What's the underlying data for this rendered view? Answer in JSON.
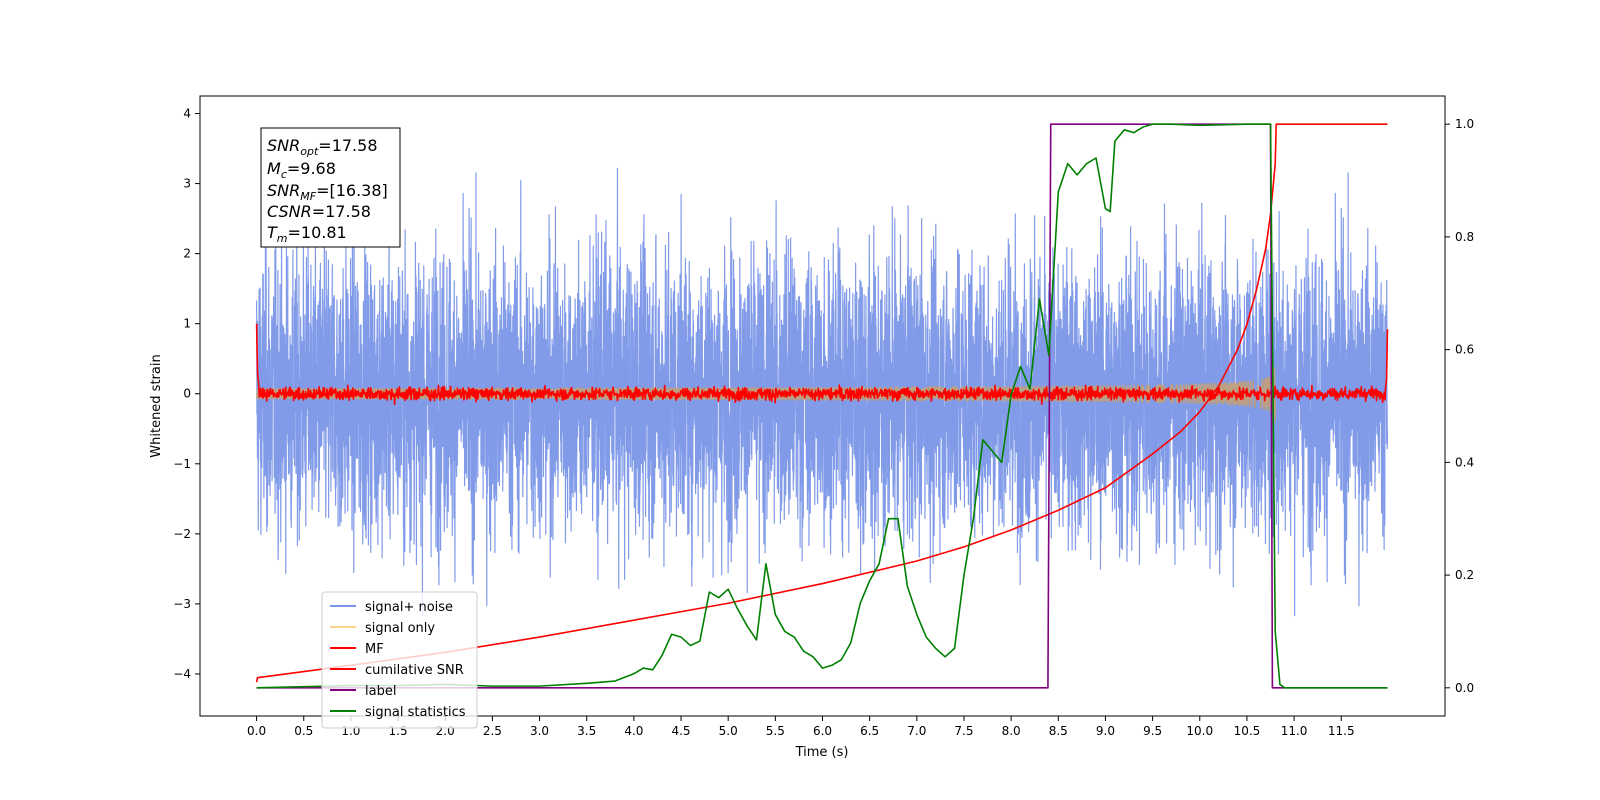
{
  "chart_data": {
    "type": "line",
    "xlabel": "Time (s)",
    "ylabel": "Whitened strain",
    "xlim": [
      -0.6,
      12.6
    ],
    "ylim": [
      -4.6,
      4.25
    ],
    "y2lim": [
      -0.05,
      1.05
    ],
    "x_ticks": [
      "0.0",
      "0.5",
      "1.0",
      "1.5",
      "2.0",
      "2.5",
      "3.0",
      "3.5",
      "4.0",
      "4.5",
      "5.0",
      "5.5",
      "6.0",
      "6.5",
      "7.0",
      "7.5",
      "8.0",
      "8.5",
      "9.0",
      "9.5",
      "10.0",
      "10.5",
      "11.0",
      "11.5"
    ],
    "y_ticks": [
      "−4",
      "−3",
      "−2",
      "−1",
      "0",
      "1",
      "2",
      "3",
      "4"
    ],
    "y2_ticks": [
      "0.0",
      "0.2",
      "0.4",
      "0.6",
      "0.8",
      "1.0"
    ],
    "annotation": {
      "snr_opt": {
        "base": "SNR",
        "sub": "opt",
        "value": "=17.58"
      },
      "mc": {
        "base": "M",
        "sub": "c",
        "value": "=9.68"
      },
      "snr_mf": {
        "base": "SNR",
        "sub": "MF",
        "value": "=[16.38]"
      },
      "csnr": {
        "base": "CSNR",
        "sub": "",
        "value": "=17.58"
      },
      "tm": {
        "base": "T",
        "sub": "m",
        "value": "=10.81"
      }
    },
    "legend_position": "lower-left",
    "series": [
      {
        "name": "signal+ noise",
        "color": "#7a96e8",
        "axis": "left",
        "kind": "noise",
        "x_range": [
          0.0,
          11.99
        ],
        "std": 1.0,
        "y_min": -4.1,
        "y_max": 3.9
      },
      {
        "name": "signal only",
        "color": "#fbd38a",
        "axis": "left",
        "kind": "chirp",
        "x_range": [
          0.0,
          10.81
        ],
        "amp_end": 1.4
      },
      {
        "name": "MF",
        "color": "#ff0000",
        "axis": "left",
        "kind": "mf",
        "x_range": [
          0.0,
          11.99
        ]
      },
      {
        "name": "cumilative SNR",
        "color": "#ff0000",
        "axis": "right",
        "kind": "line",
        "x": [
          0.0,
          0.01,
          1.0,
          2.0,
          3.0,
          4.0,
          5.0,
          6.0,
          7.0,
          7.5,
          8.0,
          8.5,
          9.0,
          9.5,
          9.8,
          10.0,
          10.2,
          10.4,
          10.5,
          10.6,
          10.7,
          10.75,
          10.8,
          10.81,
          10.82,
          11.99
        ],
        "y": [
          0.01,
          0.018,
          0.04,
          0.063,
          0.09,
          0.12,
          0.15,
          0.185,
          0.225,
          0.25,
          0.28,
          0.315,
          0.355,
          0.415,
          0.455,
          0.49,
          0.535,
          0.6,
          0.645,
          0.705,
          0.78,
          0.84,
          0.93,
          1.0,
          1.0,
          1.0
        ]
      },
      {
        "name": "label",
        "color": "#800080",
        "axis": "right",
        "kind": "line",
        "x": [
          0.0,
          8.39,
          8.42,
          10.75,
          10.77,
          11.99
        ],
        "y": [
          0.0,
          0.0,
          1.0,
          1.0,
          0.0,
          0.0
        ]
      },
      {
        "name": "signal statistics",
        "color": "#008000",
        "axis": "right",
        "kind": "line",
        "x": [
          0.0,
          0.5,
          1.0,
          1.5,
          2.0,
          2.5,
          3.0,
          3.5,
          3.8,
          4.0,
          4.1,
          4.2,
          4.3,
          4.4,
          4.5,
          4.6,
          4.7,
          4.8,
          4.9,
          5.0,
          5.1,
          5.2,
          5.3,
          5.4,
          5.5,
          5.6,
          5.7,
          5.8,
          5.9,
          6.0,
          6.1,
          6.2,
          6.3,
          6.4,
          6.5,
          6.6,
          6.7,
          6.8,
          6.9,
          7.0,
          7.1,
          7.2,
          7.3,
          7.4,
          7.5,
          7.6,
          7.7,
          7.8,
          7.9,
          8.0,
          8.1,
          8.2,
          8.3,
          8.4,
          8.5,
          8.6,
          8.7,
          8.8,
          8.9,
          9.0,
          9.05,
          9.1,
          9.2,
          9.3,
          9.4,
          9.5,
          9.7,
          10.0,
          10.5,
          10.7,
          10.75,
          10.8,
          10.85,
          10.9,
          11.0,
          11.99
        ],
        "y": [
          0.0,
          0.002,
          0.004,
          0.004,
          0.006,
          0.003,
          0.003,
          0.008,
          0.012,
          0.025,
          0.035,
          0.032,
          0.058,
          0.095,
          0.09,
          0.075,
          0.083,
          0.17,
          0.16,
          0.175,
          0.14,
          0.11,
          0.085,
          0.22,
          0.13,
          0.1,
          0.09,
          0.065,
          0.055,
          0.035,
          0.04,
          0.05,
          0.08,
          0.15,
          0.19,
          0.22,
          0.3,
          0.3,
          0.18,
          0.13,
          0.09,
          0.07,
          0.055,
          0.07,
          0.2,
          0.3,
          0.44,
          0.42,
          0.4,
          0.52,
          0.57,
          0.53,
          0.69,
          0.59,
          0.88,
          0.93,
          0.91,
          0.93,
          0.94,
          0.85,
          0.845,
          0.97,
          0.99,
          0.985,
          0.995,
          1.0,
          1.0,
          0.998,
          1.0,
          1.0,
          1.0,
          0.1,
          0.006,
          0.0,
          0.0,
          0.0
        ]
      }
    ]
  }
}
